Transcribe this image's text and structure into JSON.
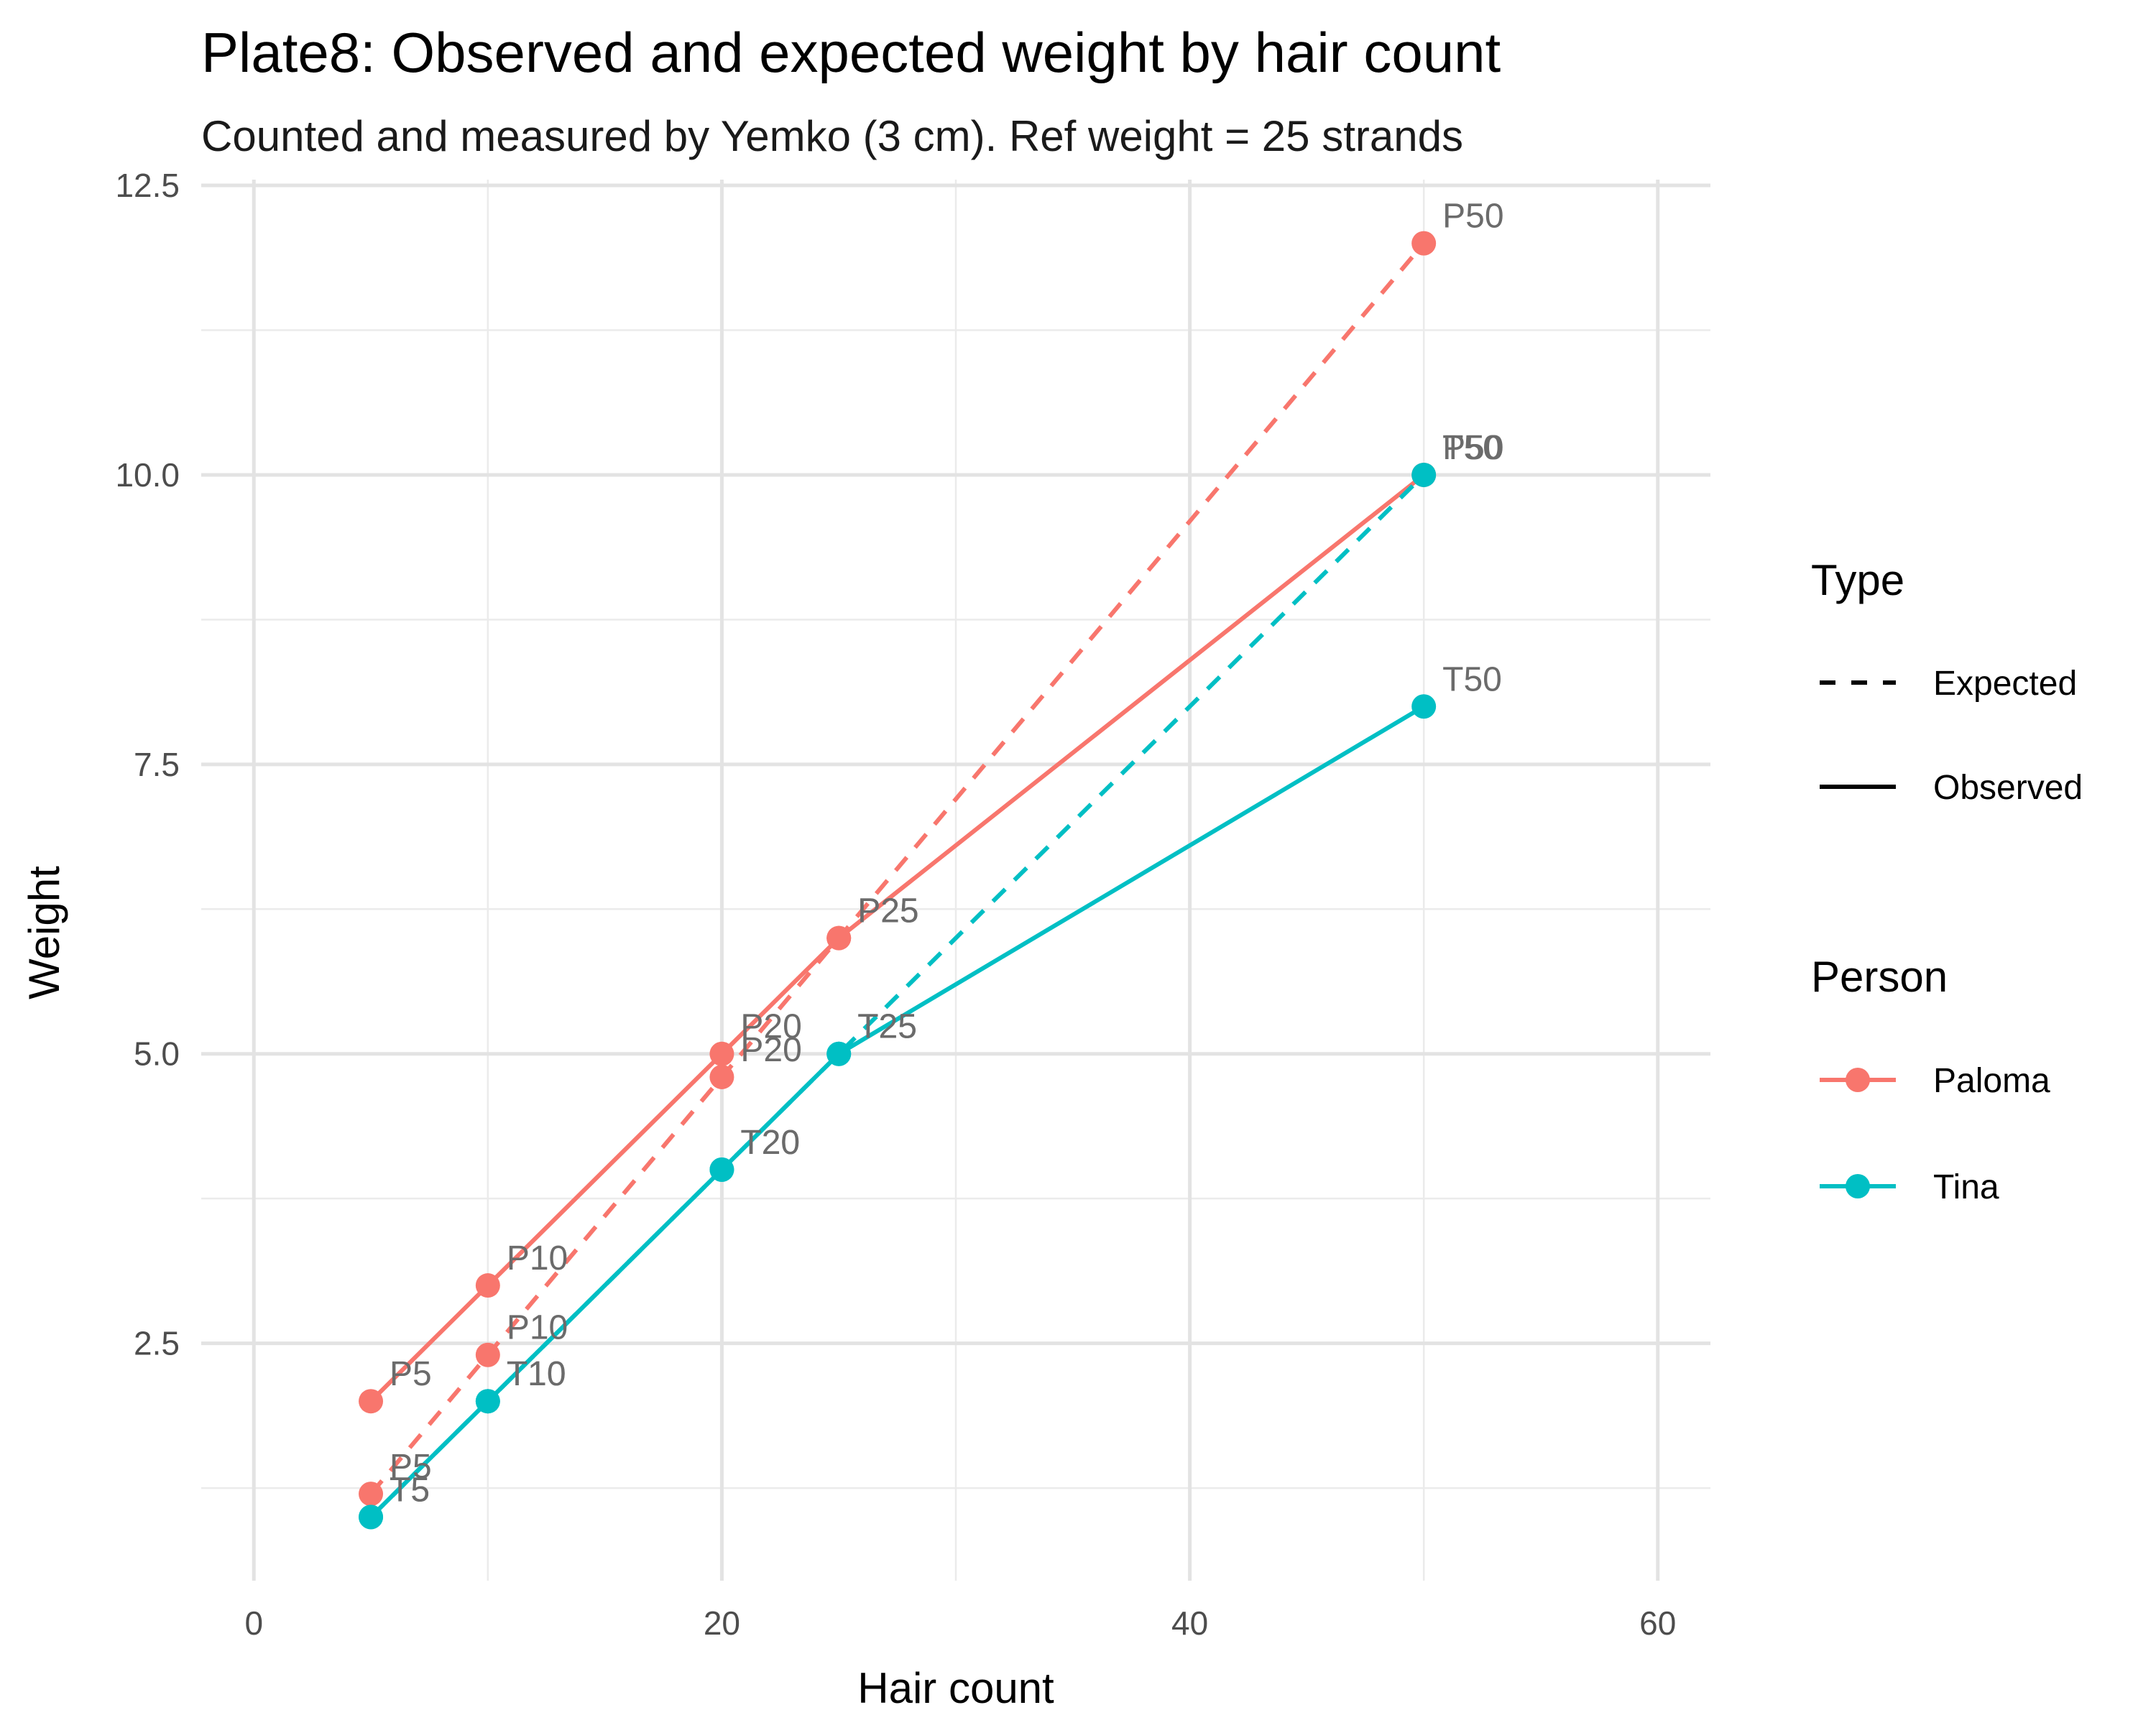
{
  "chart_data": {
    "type": "line",
    "title": "Plate8: Observed and expected weight by hair count",
    "subtitle": "Counted and measured by Yemko (3 cm). Ref weight = 25 strands",
    "xlabel": "Hair count",
    "ylabel": "Weight",
    "xlim": [
      -2.25,
      62.25
    ],
    "ylim": [
      0.45,
      12.55
    ],
    "x_ticks": [
      0,
      20,
      40,
      60
    ],
    "x_tick_labels": [
      "0",
      "20",
      "40",
      "60"
    ],
    "x_minor_ticks": [
      10,
      30,
      50
    ],
    "y_ticks": [
      2.5,
      5.0,
      7.5,
      10.0,
      12.5
    ],
    "y_tick_labels": [
      "2.5",
      "5.0",
      "7.5",
      "10.0",
      "12.5"
    ],
    "y_minor_ticks": [
      1.25,
      3.75,
      6.25,
      8.75,
      11.25
    ],
    "grid": true,
    "legend_position": "right",
    "colors": {
      "Paloma": "#F8766D",
      "Tina": "#00BFC4"
    },
    "series": [
      {
        "name": "Paloma",
        "type": "Observed",
        "color": "#F8766D",
        "dash": "solid",
        "points": [
          {
            "x": 5,
            "y": 2.0,
            "label": "P5"
          },
          {
            "x": 10,
            "y": 3.0,
            "label": "P10"
          },
          {
            "x": 20,
            "y": 5.0,
            "label": "P20"
          },
          {
            "x": 25,
            "y": 6.0,
            "label": "P25"
          },
          {
            "x": 50,
            "y": 10.0,
            "label": "P50"
          }
        ]
      },
      {
        "name": "Paloma",
        "type": "Expected",
        "color": "#F8766D",
        "dash": "dashed",
        "points": [
          {
            "x": 5,
            "y": 1.2,
            "label": "P5"
          },
          {
            "x": 10,
            "y": 2.4,
            "label": "P10"
          },
          {
            "x": 20,
            "y": 4.8,
            "label": "P20"
          },
          {
            "x": 25,
            "y": 6.0,
            "label": "P25"
          },
          {
            "x": 50,
            "y": 12.0,
            "label": "P50"
          }
        ]
      },
      {
        "name": "Tina",
        "type": "Observed",
        "color": "#00BFC4",
        "dash": "solid",
        "points": [
          {
            "x": 5,
            "y": 1.0,
            "label": "T5"
          },
          {
            "x": 10,
            "y": 2.0,
            "label": "T10"
          },
          {
            "x": 20,
            "y": 4.0,
            "label": "T20"
          },
          {
            "x": 25,
            "y": 5.0,
            "label": "T25"
          },
          {
            "x": 50,
            "y": 8.0,
            "label": "T50"
          }
        ]
      },
      {
        "name": "Tina",
        "type": "Expected",
        "color": "#00BFC4",
        "dash": "dashed",
        "points": [
          {
            "x": 5,
            "y": 1.0,
            "label": "T5"
          },
          {
            "x": 10,
            "y": 2.0,
            "label": "T10"
          },
          {
            "x": 20,
            "y": 4.0,
            "label": "T20"
          },
          {
            "x": 25,
            "y": 5.0,
            "label": "T25"
          },
          {
            "x": 50,
            "y": 10.0,
            "label": "T50"
          }
        ]
      }
    ],
    "legend": {
      "type_title": "Type",
      "type_items": [
        {
          "label": "Expected",
          "dash": "dashed"
        },
        {
          "label": "Observed",
          "dash": "solid"
        }
      ],
      "person_title": "Person",
      "person_items": [
        {
          "label": "Paloma",
          "color": "#F8766D"
        },
        {
          "label": "Tina",
          "color": "#00BFC4"
        }
      ]
    }
  }
}
